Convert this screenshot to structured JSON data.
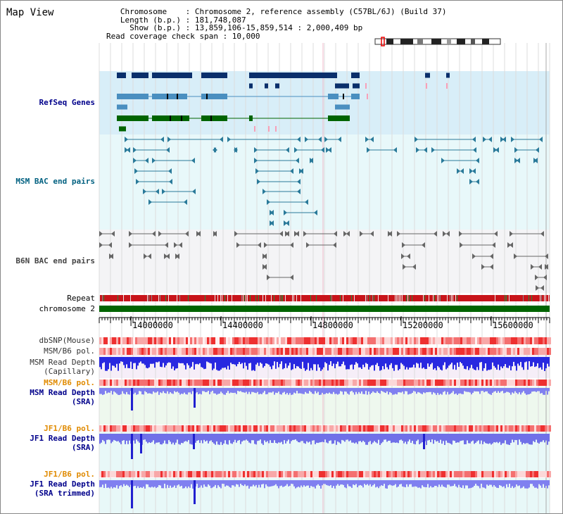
{
  "title": "Map View",
  "info": {
    "lines": [
      "   Chromosome    : Chromosome 2, reference assembly (C57BL/6J) (Build 37)",
      "   Length (b.p.) : 181,748,087",
      "     Show (b.p.) : 13,859,106-15,859,514 : 2,000,409 bp",
      "Read coverage check span : 10,000"
    ]
  },
  "tracks": {
    "refseq": "RefSeq Genes",
    "msm_bac": "MSM BAC end pairs",
    "b6n_bac": "B6N BAC end pairs",
    "repeat": "Repeat",
    "chromosome": "chromosome 2",
    "dbsnp": "dbSNP(Mouse)",
    "msm_pol": "MSM/B6 pol.",
    "msm_depth_cap_1": "MSM Read Depth",
    "msm_depth_cap_2": "(Capillary)",
    "msm_pol2": "MSM/B6 pol.",
    "msm_depth_sra_1": "MSM Read Depth",
    "msm_depth_sra_2": "(SRA)",
    "jf1_pol": "JF1/B6 pol.",
    "jf1_depth_sra_1": "JF1 Read Depth",
    "jf1_depth_sra_2": "(SRA)",
    "jf1_pol2": "JF1/B6 pol.",
    "jf1_depth_trim_1": "JF1 Read Depth",
    "jf1_depth_trim_2": "(SRA trimmed)"
  },
  "axis": {
    "ticks": [
      "14000000",
      "14400000",
      "14800000",
      "15200000",
      "15600000"
    ],
    "tick_values": [
      14000000,
      14400000,
      14800000,
      15200000,
      15600000
    ],
    "range": [
      13859106,
      15859514
    ]
  },
  "colors": {
    "refseq_dark": "#0a2f6b",
    "refseq_mid": "#4a8fc0",
    "refseq_green": "#006400",
    "msm_bac": "#2a7a9a",
    "b6n_bac": "#666666",
    "chromosome": "#006400",
    "label_blue": "#00008b",
    "label_orange": "#e08a00",
    "label_teal": "#006080"
  }
}
